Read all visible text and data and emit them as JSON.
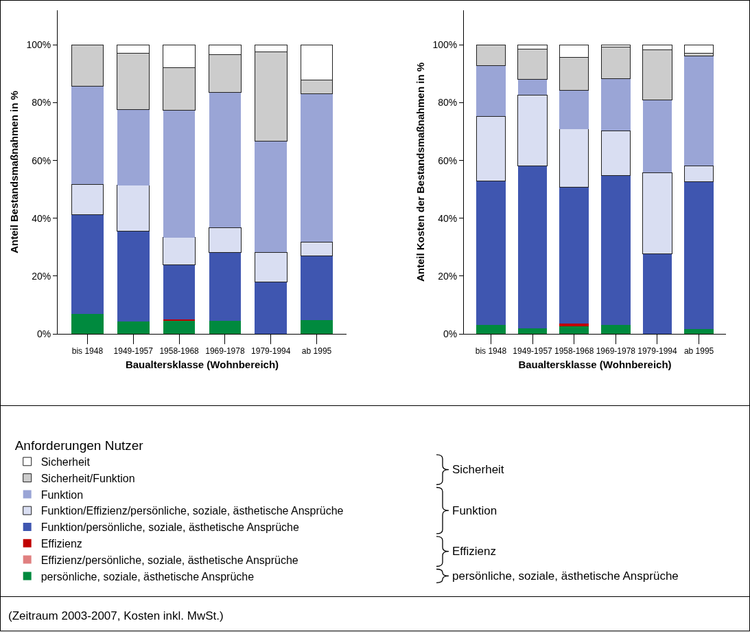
{
  "chart_data": [
    {
      "type": "bar",
      "stacked": true,
      "xlabel": "Baualtersklasse (Wohnbereich)",
      "ylabel": "Anteil Bestandsmaßnahmen in %",
      "categories": [
        "bis 1948",
        "1949-1957",
        "1958-1968",
        "1969-1978",
        "1979-1994",
        "ab 1995"
      ],
      "ylim": [
        0,
        112
      ],
      "yticks": [
        {
          "value": 0,
          "label": "0%"
        },
        {
          "value": 20,
          "label": "20%"
        },
        {
          "value": 40,
          "label": "40%"
        },
        {
          "value": 60,
          "label": "60%"
        },
        {
          "value": 80,
          "label": "80%"
        },
        {
          "value": 100,
          "label": "100%"
        }
      ],
      "legend": "bottom",
      "legend_title": "Anforderungen Nutzer",
      "grid": false,
      "series": [
        {
          "name": "persönliche, soziale, ästhetische Ansprüche",
          "color": "#008a3e",
          "values": [
            7.0,
            4.2,
            4.6,
            4.6,
            null,
            4.8
          ]
        },
        {
          "name": "Effizienz/persönliche, soziale, ästhetische Ansprüche",
          "color": "#e08080",
          "values": [
            null,
            null,
            null,
            null,
            null,
            null
          ]
        },
        {
          "name": "Effizienz",
          "color": "#c00000",
          "values": [
            null,
            null,
            0.4,
            null,
            null,
            null
          ]
        },
        {
          "name": "Funktion/persönliche, soziale, ästhetische Ansprüche",
          "color": "#3f56b0",
          "values": [
            34.2,
            31.4,
            19.0,
            23.6,
            18.0,
            22.1
          ]
        },
        {
          "name": "Funktion/Effizienz/persönliche, soziale, ästhetische Ansprüche",
          "color": "#d9def2",
          "values": [
            10.6,
            15.8,
            9.3,
            8.6,
            10.2,
            4.9
          ]
        },
        {
          "name": "Funktion",
          "color": "#9aa5d6",
          "values": [
            34.0,
            26.2,
            44.1,
            46.8,
            38.5,
            51.2
          ]
        },
        {
          "name": "Sicherheit/Funktion",
          "color": "#cccccc",
          "values": [
            14.2,
            19.6,
            14.8,
            13.0,
            30.8,
            4.9
          ]
        },
        {
          "name": "Sicherheit",
          "color": "#ffffff",
          "values": [
            null,
            2.8,
            7.8,
            3.4,
            2.5,
            12.1
          ]
        }
      ],
      "annotations": [
        "Sicherheit",
        "Funktion",
        "Effizienz",
        "persönliche, soziale, ästhetische Ansprüche",
        "(Zeitraum 2003-2007, Kosten inkl. MwSt.)"
      ]
    },
    {
      "type": "bar",
      "stacked": true,
      "xlabel": "Baualtersklasse (Wohnbereich)",
      "ylabel": "Anteil Kosten der Bestandsmaßnahmen in %",
      "categories": [
        "bis 1948",
        "1949-1957",
        "1958-1968",
        "1969-1978",
        "1979-1994",
        "ab 1995"
      ],
      "ylim": [
        0,
        112
      ],
      "yticks": [
        {
          "value": 0,
          "label": "0%"
        },
        {
          "value": 20,
          "label": "20%"
        },
        {
          "value": 40,
          "label": "40%"
        },
        {
          "value": 60,
          "label": "60%"
        },
        {
          "value": 80,
          "label": "80%"
        },
        {
          "value": 100,
          "label": "100%"
        }
      ],
      "grid": false,
      "series": [
        {
          "color": "#008a3e",
          "values": [
            3.2,
            2.0,
            2.7,
            3.2,
            null,
            1.6
          ]
        },
        {
          "color": "#c00000",
          "values": [
            null,
            null,
            0.8,
            null,
            null,
            null
          ]
        },
        {
          "color": "#3f56b0",
          "values": [
            49.6,
            56.2,
            47.3,
            51.7,
            27.6,
            51.1
          ]
        },
        {
          "color": "#d9def2",
          "values": [
            22.5,
            24.5,
            20.1,
            15.4,
            28.2,
            5.5
          ]
        },
        {
          "color": "#9aa5d6",
          "values": [
            17.6,
            5.4,
            13.4,
            18.1,
            25.2,
            37.9
          ]
        },
        {
          "color": "#cccccc",
          "values": [
            7.1,
            10.5,
            11.4,
            10.9,
            17.3,
            1.1
          ]
        },
        {
          "color": "#ffffff",
          "values": [
            null,
            1.4,
            4.3,
            0.7,
            1.7,
            2.8
          ]
        }
      ]
    }
  ]
}
